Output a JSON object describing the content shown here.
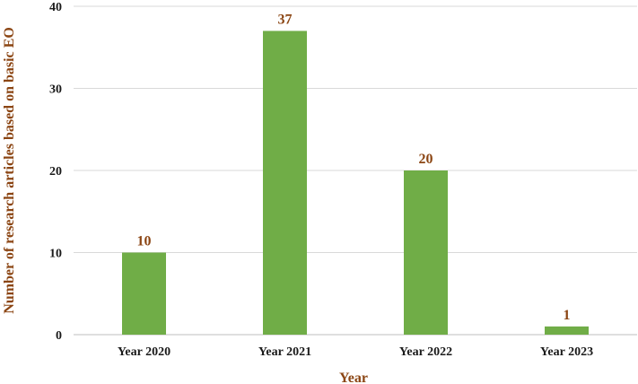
{
  "chart_data": {
    "type": "bar",
    "categories": [
      "Year 2020",
      "Year 2021",
      "Year 2022",
      "Year 2023"
    ],
    "values": [
      10,
      37,
      20,
      1
    ],
    "data_labels": [
      "10",
      "37",
      "20",
      "1"
    ],
    "xlabel": "Year",
    "ylabel": "Number of research articles based on basic EO",
    "ylim": [
      0,
      40
    ],
    "yticks": [
      "0",
      "10",
      "20",
      "30",
      "40"
    ],
    "grid": true,
    "legend": "none"
  },
  "colors": {
    "bar": "#70ad47",
    "data_label": "#8b4513",
    "axis_title": "#8b4513"
  }
}
